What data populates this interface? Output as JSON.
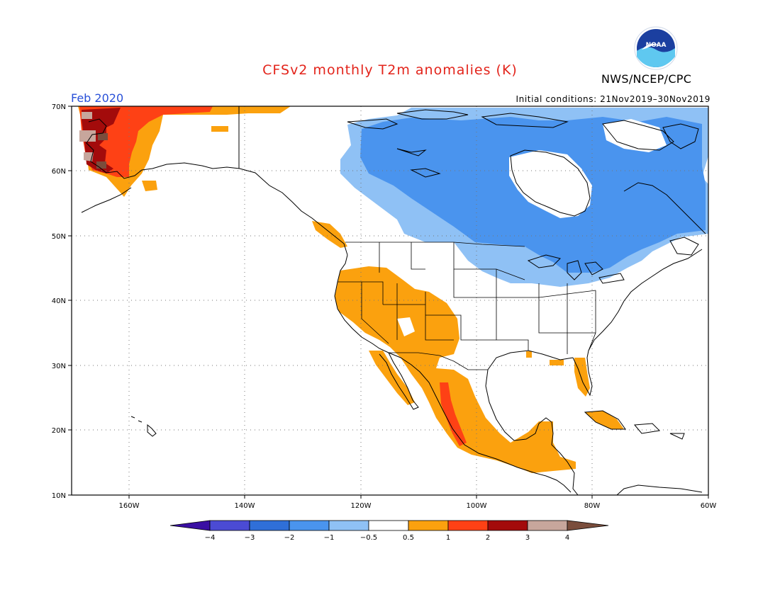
{
  "header": {
    "title": "CFSv2 monthly T2m anomalies (K)",
    "agency": "NWS/NCEP/CPC",
    "logo_text": "NOAA",
    "month": "Feb 2020",
    "initial_conditions": "Initial conditions: 21Nov2019–30Nov2019"
  },
  "axes": {
    "lat_labels": [
      "70N",
      "60N",
      "50N",
      "40N",
      "30N",
      "20N",
      "10N"
    ],
    "lon_labels": [
      "160W",
      "140W",
      "120W",
      "100W",
      "80W",
      "60W"
    ],
    "lon_range": [
      -170,
      -60
    ],
    "lat_range": [
      10,
      70
    ]
  },
  "colorbar": {
    "labels": [
      "−4",
      "−3",
      "−2",
      "−1",
      "−0.5",
      "0.5",
      "1",
      "2",
      "3",
      "4"
    ],
    "colors": [
      "#3a0fa3",
      "#4b4bd4",
      "#2f6fd8",
      "#4a94ee",
      "#8fc1f5",
      "#ffffff",
      "#fba10e",
      "#fe4115",
      "#a30b0b",
      "#c7a69c",
      "#7a4d3c"
    ]
  },
  "colors": {
    "light_blue": "#8fc1f5",
    "blue": "#4a94ee",
    "orange": "#fba10e",
    "red_orange": "#fe4115",
    "dark_red": "#a30b0b",
    "tan": "#c7a69c",
    "brown": "#7a4d3c"
  }
}
